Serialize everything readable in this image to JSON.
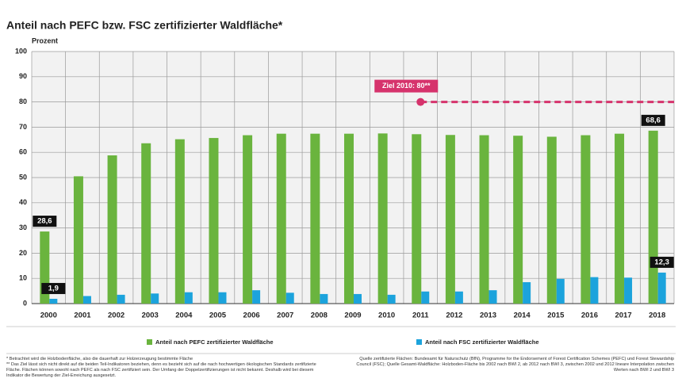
{
  "chart_data": {
    "type": "bar",
    "title": "Anteil nach PEFC bzw. FSC zertifizierter Waldfläche*",
    "y_label": "Prozent",
    "categories": [
      "2000",
      "2001",
      "2002",
      "2003",
      "2004",
      "2005",
      "2006",
      "2007",
      "2008",
      "2009",
      "2010",
      "2011",
      "2012",
      "2013",
      "2014",
      "2015",
      "2016",
      "2017",
      "2018"
    ],
    "series": [
      {
        "name": "Anteil nach PEFC zertifizierter Waldfläche",
        "color": "#6ab43e",
        "values": [
          28.6,
          50.5,
          58.8,
          63.6,
          65.2,
          65.7,
          66.8,
          67.4,
          67.4,
          67.4,
          67.5,
          67.2,
          66.9,
          66.8,
          66.6,
          66.2,
          66.8,
          67.4,
          68.6
        ],
        "value_labels": [
          "28,6",
          null,
          null,
          null,
          null,
          null,
          null,
          null,
          null,
          null,
          null,
          null,
          null,
          null,
          null,
          null,
          null,
          null,
          "68,6"
        ]
      },
      {
        "name": "Anteil nach FSC zertifizierter Waldfläche",
        "color": "#1ca3dc",
        "values": [
          1.9,
          3.0,
          3.5,
          4.0,
          4.5,
          4.5,
          5.3,
          4.3,
          3.8,
          3.8,
          3.5,
          4.8,
          4.8,
          5.3,
          8.5,
          9.8,
          10.5,
          10.3,
          12.3
        ],
        "value_labels": [
          "1,9",
          null,
          null,
          null,
          null,
          null,
          null,
          null,
          null,
          null,
          null,
          null,
          null,
          null,
          null,
          null,
          null,
          null,
          "12,3"
        ]
      }
    ],
    "target": {
      "label": "Ziel 2010: 80**",
      "value": 80,
      "from": "2011",
      "color": "#d6336c"
    },
    "ylim": [
      0,
      100
    ],
    "yticks": [
      0,
      10,
      20,
      30,
      40,
      50,
      60,
      70,
      80,
      90,
      100
    ],
    "grid": true,
    "footnotes_left": [
      "* Betrachtet wird die Holzbodenfläche, also die dauerhaft zur Holzerzeugung bestimmte Fläche",
      "** Das Ziel lässt sich nicht direkt auf die beiden Teil-Indikatoren beziehen, denn es bezieht sich auf die nach hochwertigen ökologischen Standards zertifizierte Fläche. Flächen können sowohl nach PEFC als nach FSC zertifiziert sein. Der Umfang der Doppelzertifizierungen ist nicht bekannt. Deshalb wird bei diesem Indikator die Bewertung der Ziel-Erreichung ausgesetzt."
    ],
    "footnotes_right": [
      "Quelle zertifizierte Flächen: Bundesamt für Naturschutz (BfN), Programme for the Endorsement of Forest Certification Schemes (PEFC) und Forest Stewardship Council (FSC); Quelle Gesamt-Waldfläche: Holzboden-Fläche bis 2002 nach BWI 2, ab 2012 nach BWI 3, zwischen 2002 und 2012 lineare Interpolation zwischen Werten nach BWI 2 und BWI 3"
    ]
  }
}
